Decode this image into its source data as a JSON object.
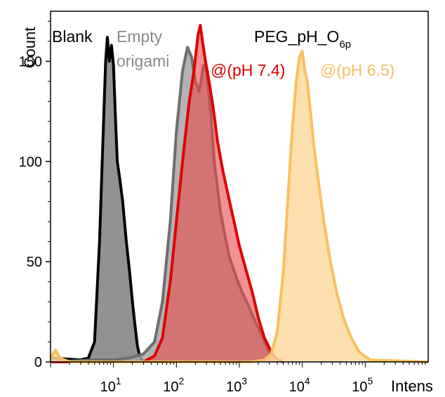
{
  "chart_data": {
    "type": "area",
    "title": "PEG_pH_O",
    "title_subscript": "6p",
    "xlabel": "Intens",
    "ylabel": "Count",
    "x_scale": "log",
    "xlim": [
      1,
      1000000
    ],
    "ylim": [
      0,
      175
    ],
    "yticks": [
      0,
      50,
      100,
      150
    ],
    "xticks": [
      {
        "value": 10,
        "base": "10",
        "exp": "1"
      },
      {
        "value": 100,
        "base": "10",
        "exp": "2"
      },
      {
        "value": 1000,
        "base": "10",
        "exp": "3"
      },
      {
        "value": 10000,
        "base": "10",
        "exp": "4"
      },
      {
        "value": 100000,
        "base": "10",
        "exp": "5"
      }
    ],
    "grid": false,
    "series": [
      {
        "name": "Blank",
        "fill": "#7f7f7f",
        "stroke": "#000000",
        "points": [
          [
            1,
            2
          ],
          [
            3,
            1
          ],
          [
            4,
            2
          ],
          [
            5,
            10
          ],
          [
            6,
            60
          ],
          [
            6.8,
            110
          ],
          [
            7.5,
            150
          ],
          [
            8,
            162
          ],
          [
            8.6,
            150
          ],
          [
            9.3,
            158
          ],
          [
            10,
            148
          ],
          [
            10.8,
            120
          ],
          [
            11.5,
            100
          ],
          [
            12.5,
            92
          ],
          [
            14,
            80
          ],
          [
            16,
            60
          ],
          [
            18,
            45
          ],
          [
            20,
            30
          ],
          [
            22,
            18
          ],
          [
            24,
            8
          ],
          [
            26,
            3
          ],
          [
            28,
            1
          ],
          [
            32,
            0
          ]
        ]
      },
      {
        "name": "Empty origami",
        "label_lines": [
          "Empty",
          "origami"
        ],
        "fill": "#a6a6a6",
        "stroke": "#6e6e6e",
        "points": [
          [
            1,
            0
          ],
          [
            5,
            1
          ],
          [
            10,
            1
          ],
          [
            18,
            2
          ],
          [
            30,
            4
          ],
          [
            45,
            10
          ],
          [
            60,
            30
          ],
          [
            80,
            70
          ],
          [
            100,
            115
          ],
          [
            125,
            145
          ],
          [
            150,
            157
          ],
          [
            175,
            152
          ],
          [
            200,
            140
          ],
          [
            230,
            135
          ],
          [
            270,
            148
          ],
          [
            300,
            145
          ],
          [
            350,
            125
          ],
          [
            400,
            100
          ],
          [
            500,
            75
          ],
          [
            600,
            62
          ],
          [
            700,
            52
          ],
          [
            900,
            42
          ],
          [
            1100,
            35
          ],
          [
            1400,
            28
          ],
          [
            1800,
            20
          ],
          [
            2400,
            12
          ],
          [
            3000,
            5
          ],
          [
            3800,
            2
          ],
          [
            5000,
            0
          ]
        ]
      },
      {
        "name": "@(pH 7.4)",
        "fill": "#e8484a",
        "stroke": "#e00000",
        "points": [
          [
            1,
            0
          ],
          [
            30,
            0
          ],
          [
            45,
            3
          ],
          [
            60,
            12
          ],
          [
            80,
            40
          ],
          [
            100,
            70
          ],
          [
            130,
            105
          ],
          [
            160,
            130
          ],
          [
            190,
            145
          ],
          [
            220,
            163
          ],
          [
            240,
            168
          ],
          [
            260,
            160
          ],
          [
            290,
            150
          ],
          [
            330,
            140
          ],
          [
            380,
            128
          ],
          [
            450,
            110
          ],
          [
            550,
            95
          ],
          [
            700,
            80
          ],
          [
            850,
            68
          ],
          [
            1000,
            58
          ],
          [
            1300,
            45
          ],
          [
            1600,
            35
          ],
          [
            2000,
            22
          ],
          [
            2500,
            12
          ],
          [
            3000,
            7
          ],
          [
            3500,
            3
          ],
          [
            4000,
            1
          ],
          [
            5000,
            0
          ]
        ]
      },
      {
        "name": "@(pH 6.5)",
        "fill": "#fdd9a0",
        "stroke": "#f8c060",
        "points": [
          [
            1,
            2
          ],
          [
            1.2,
            6
          ],
          [
            1.4,
            2
          ],
          [
            2,
            0
          ],
          [
            1500,
            0
          ],
          [
            2500,
            1
          ],
          [
            3200,
            4
          ],
          [
            4000,
            15
          ],
          [
            5000,
            45
          ],
          [
            6000,
            85
          ],
          [
            7000,
            118
          ],
          [
            8000,
            140
          ],
          [
            9000,
            152
          ],
          [
            10000,
            155
          ],
          [
            11000,
            145
          ],
          [
            12000,
            140
          ],
          [
            13500,
            125
          ],
          [
            15000,
            110
          ],
          [
            18000,
            90
          ],
          [
            22000,
            70
          ],
          [
            28000,
            50
          ],
          [
            35000,
            35
          ],
          [
            45000,
            22
          ],
          [
            60000,
            12
          ],
          [
            80000,
            5
          ],
          [
            120000,
            1
          ],
          [
            1000000,
            0
          ]
        ]
      }
    ]
  }
}
